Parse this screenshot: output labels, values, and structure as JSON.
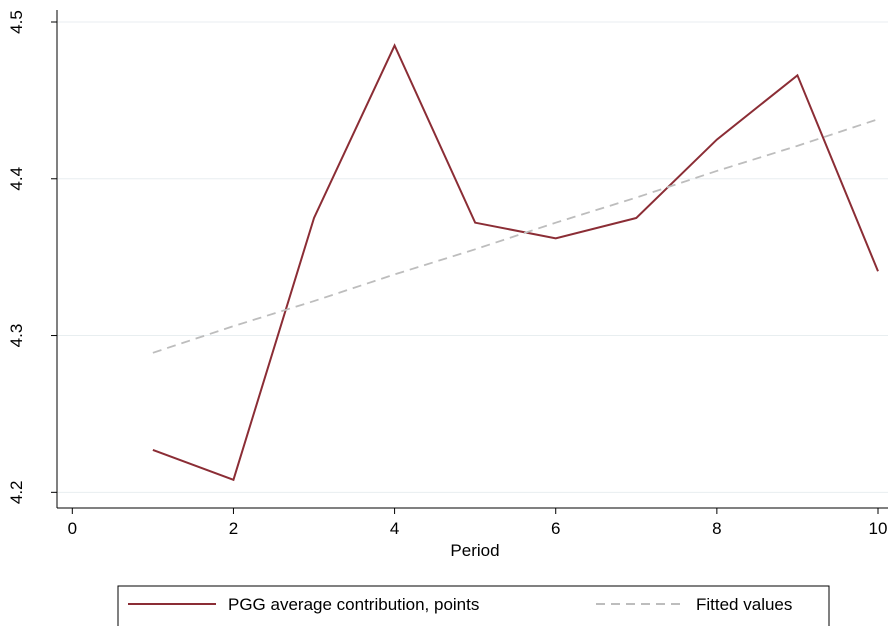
{
  "chart_data": {
    "type": "line",
    "x_label": "Period",
    "x": [
      1,
      2,
      3,
      4,
      5,
      6,
      7,
      8,
      9,
      10
    ],
    "series": [
      {
        "name": "PGG average contribution, points",
        "color": "#8b2d35",
        "dash": false,
        "values": [
          4.227,
          4.208,
          4.375,
          4.485,
          4.372,
          4.362,
          4.375,
          4.425,
          4.466,
          4.341
        ]
      },
      {
        "name": "Fitted values",
        "color": "#bdbdbd",
        "dash": true,
        "values": [
          4.289,
          4.306,
          4.322,
          4.339,
          4.355,
          4.372,
          4.388,
          4.405,
          4.421,
          4.438
        ]
      }
    ],
    "xlim": [
      -0.19,
      10
    ],
    "xticks": [
      0,
      2,
      4,
      6,
      8,
      10
    ],
    "ylim": [
      4.19,
      4.5
    ],
    "yticks": [
      4.2,
      4.3,
      4.4,
      4.5
    ],
    "grid": true,
    "legend": "bottom"
  }
}
